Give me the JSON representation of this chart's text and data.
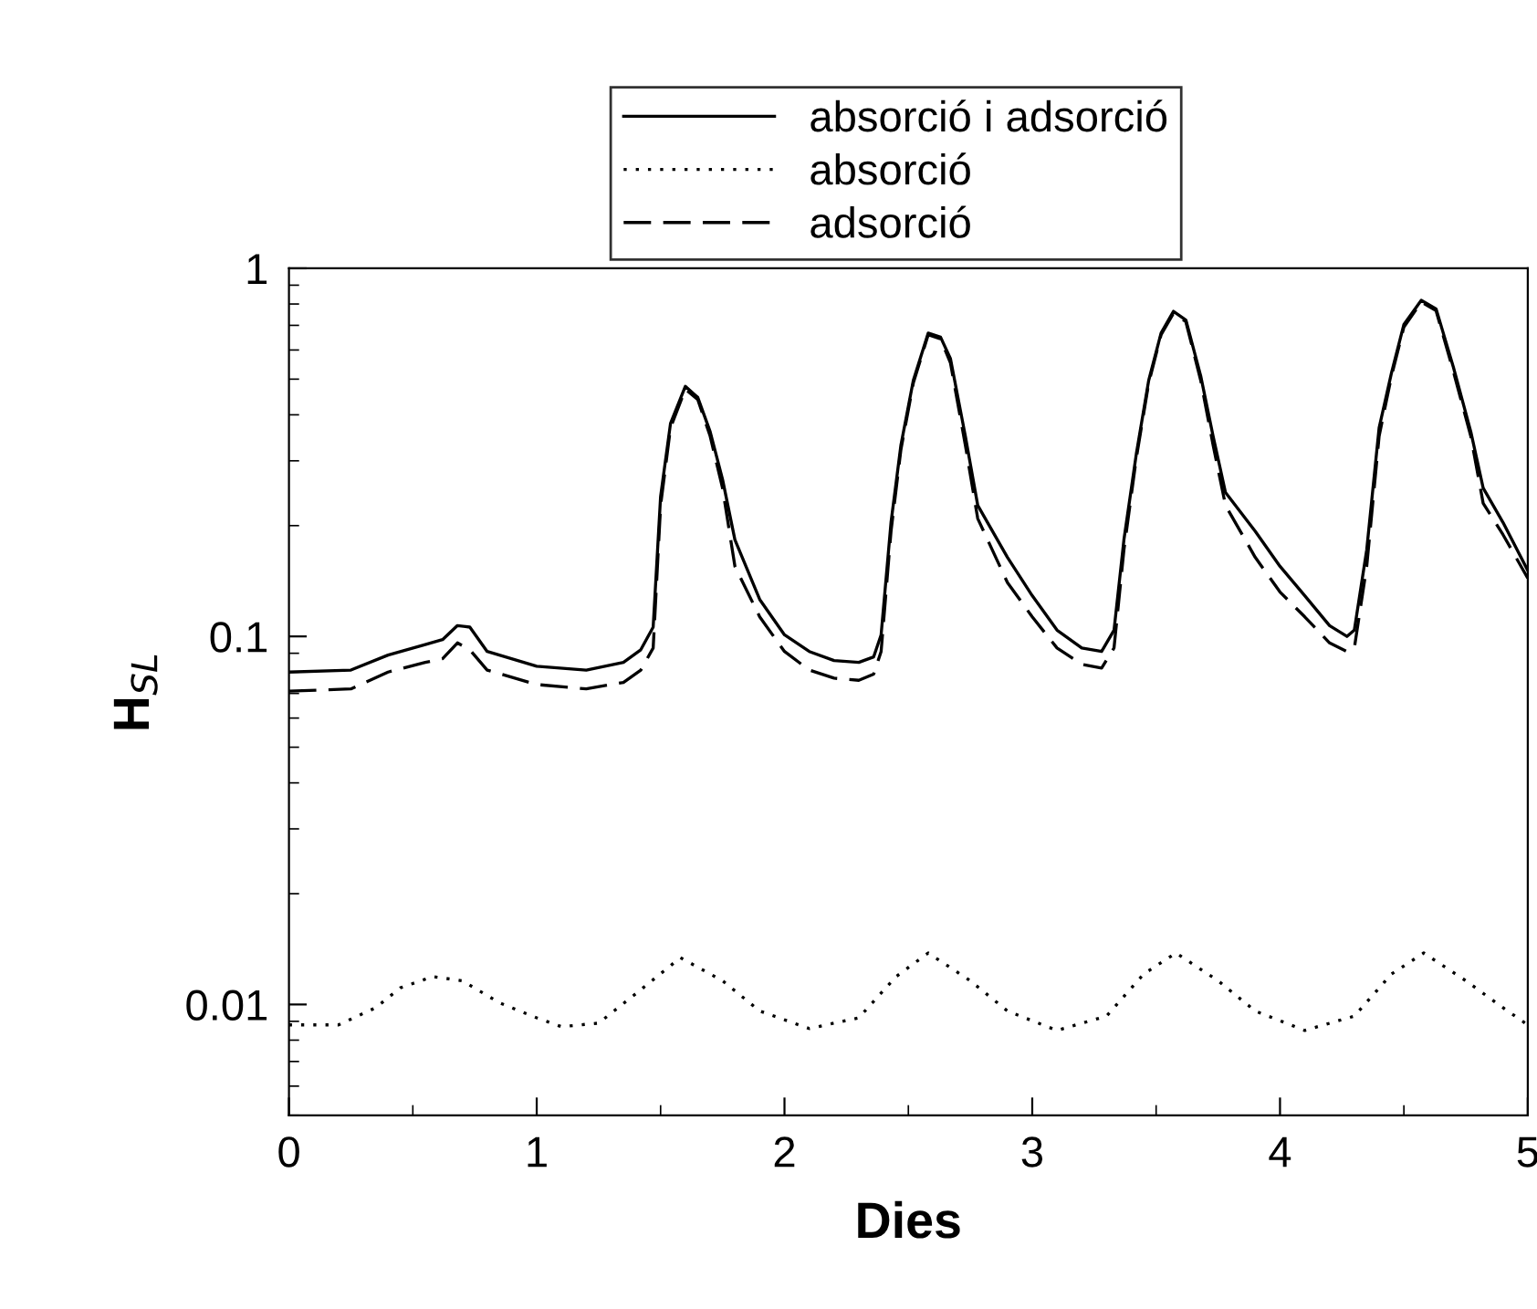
{
  "chart_data": {
    "type": "line",
    "xlabel": "Dies",
    "ylabel": "H$_{SL}$",
    "log": "y",
    "legend": "top",
    "grid": false,
    "xlim": [
      0,
      5
    ],
    "xticks": [
      0,
      1,
      2,
      3,
      4,
      5
    ],
    "ylim": [
      0.005,
      1
    ],
    "yticks": [
      0.01,
      0.1,
      1
    ],
    "x": [
      0,
      0.25,
      0.4,
      0.55,
      0.62,
      0.68,
      0.73,
      0.8,
      1.0,
      1.2,
      1.35,
      1.42,
      1.47,
      1.5,
      1.54,
      1.6,
      1.65,
      1.7,
      1.75,
      1.8,
      1.9,
      2.0,
      2.1,
      2.2,
      2.3,
      2.36,
      2.39,
      2.43,
      2.47,
      2.52,
      2.58,
      2.63,
      2.67,
      2.73,
      2.78,
      2.9,
      3.0,
      3.1,
      3.2,
      3.28,
      3.33,
      3.37,
      3.42,
      3.47,
      3.52,
      3.57,
      3.62,
      3.68,
      3.73,
      3.78,
      3.9,
      4.0,
      4.1,
      4.2,
      4.27,
      4.3,
      4.35,
      4.4,
      4.45,
      4.5,
      4.57,
      4.63,
      4.7,
      4.77,
      4.82,
      4.9,
      5.0
    ],
    "series": [
      {
        "name": "absorció i adsorció",
        "color": "#000000",
        "line_style": "solid",
        "values": [
          0.08,
          0.081,
          0.089,
          0.095,
          0.098,
          0.107,
          0.106,
          0.091,
          0.083,
          0.081,
          0.085,
          0.092,
          0.106,
          0.24,
          0.379,
          0.478,
          0.446,
          0.36,
          0.267,
          0.183,
          0.126,
          0.101,
          0.091,
          0.086,
          0.085,
          0.088,
          0.101,
          0.204,
          0.331,
          0.496,
          0.667,
          0.65,
          0.568,
          0.35,
          0.227,
          0.164,
          0.129,
          0.104,
          0.093,
          0.091,
          0.104,
          0.183,
          0.313,
          0.496,
          0.667,
          0.764,
          0.724,
          0.51,
          0.35,
          0.246,
          0.193,
          0.155,
          0.129,
          0.107,
          0.1,
          0.104,
          0.172,
          0.369,
          0.52,
          0.704,
          0.819,
          0.776,
          0.538,
          0.36,
          0.253,
          0.204,
          0.151
        ]
      },
      {
        "name": "absorció",
        "color": "#000000",
        "line_style": "dotted",
        "x": [
          0,
          0.2,
          0.35,
          0.45,
          0.58,
          0.7,
          0.85,
          1.0,
          1.1,
          1.25,
          1.4,
          1.58,
          1.75,
          1.9,
          2.1,
          2.3,
          2.45,
          2.58,
          2.75,
          2.9,
          3.1,
          3.3,
          3.45,
          3.58,
          3.75,
          3.9,
          4.1,
          4.3,
          4.45,
          4.58,
          4.75,
          4.9,
          5.0
        ],
        "values": [
          0.0088,
          0.0088,
          0.0098,
          0.0111,
          0.0119,
          0.0116,
          0.0101,
          0.0092,
          0.0087,
          0.0089,
          0.0107,
          0.0134,
          0.0116,
          0.0096,
          0.0086,
          0.0092,
          0.0119,
          0.0138,
          0.0116,
          0.0096,
          0.0085,
          0.0093,
          0.0121,
          0.0138,
          0.0116,
          0.0096,
          0.0085,
          0.0093,
          0.0121,
          0.0138,
          0.0116,
          0.0098,
          0.0088
        ]
      },
      {
        "name": "adsorció",
        "color": "#000000",
        "line_style": "dashed",
        "values": [
          0.071,
          0.072,
          0.08,
          0.085,
          0.087,
          0.096,
          0.092,
          0.081,
          0.074,
          0.072,
          0.075,
          0.081,
          0.093,
          0.227,
          0.369,
          0.47,
          0.44,
          0.35,
          0.253,
          0.155,
          0.113,
          0.091,
          0.081,
          0.077,
          0.076,
          0.079,
          0.091,
          0.193,
          0.322,
          0.488,
          0.66,
          0.643,
          0.553,
          0.331,
          0.209,
          0.14,
          0.113,
          0.093,
          0.084,
          0.082,
          0.093,
          0.172,
          0.305,
          0.488,
          0.66,
          0.755,
          0.716,
          0.496,
          0.331,
          0.227,
          0.164,
          0.132,
          0.113,
          0.096,
          0.091,
          0.093,
          0.155,
          0.35,
          0.51,
          0.693,
          0.81,
          0.767,
          0.524,
          0.35,
          0.23,
          0.189,
          0.144
        ]
      }
    ]
  }
}
